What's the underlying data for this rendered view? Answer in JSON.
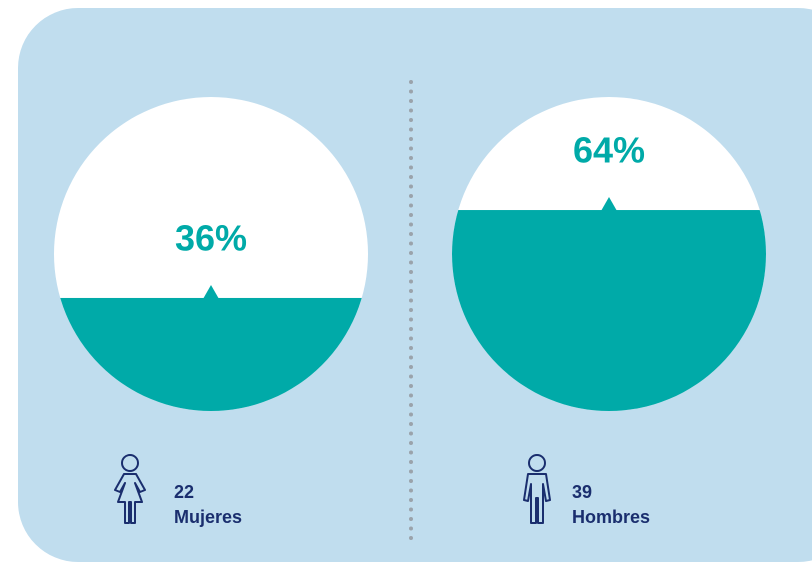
{
  "chart_data": {
    "type": "fill",
    "categories": [
      "Mujeres",
      "Hombres"
    ],
    "values": [
      36,
      64
    ],
    "value_labels": [
      "36%",
      "64%"
    ],
    "counts": [
      22,
      39
    ],
    "color": "#00aaa8",
    "ylim": [
      0,
      100
    ]
  }
}
